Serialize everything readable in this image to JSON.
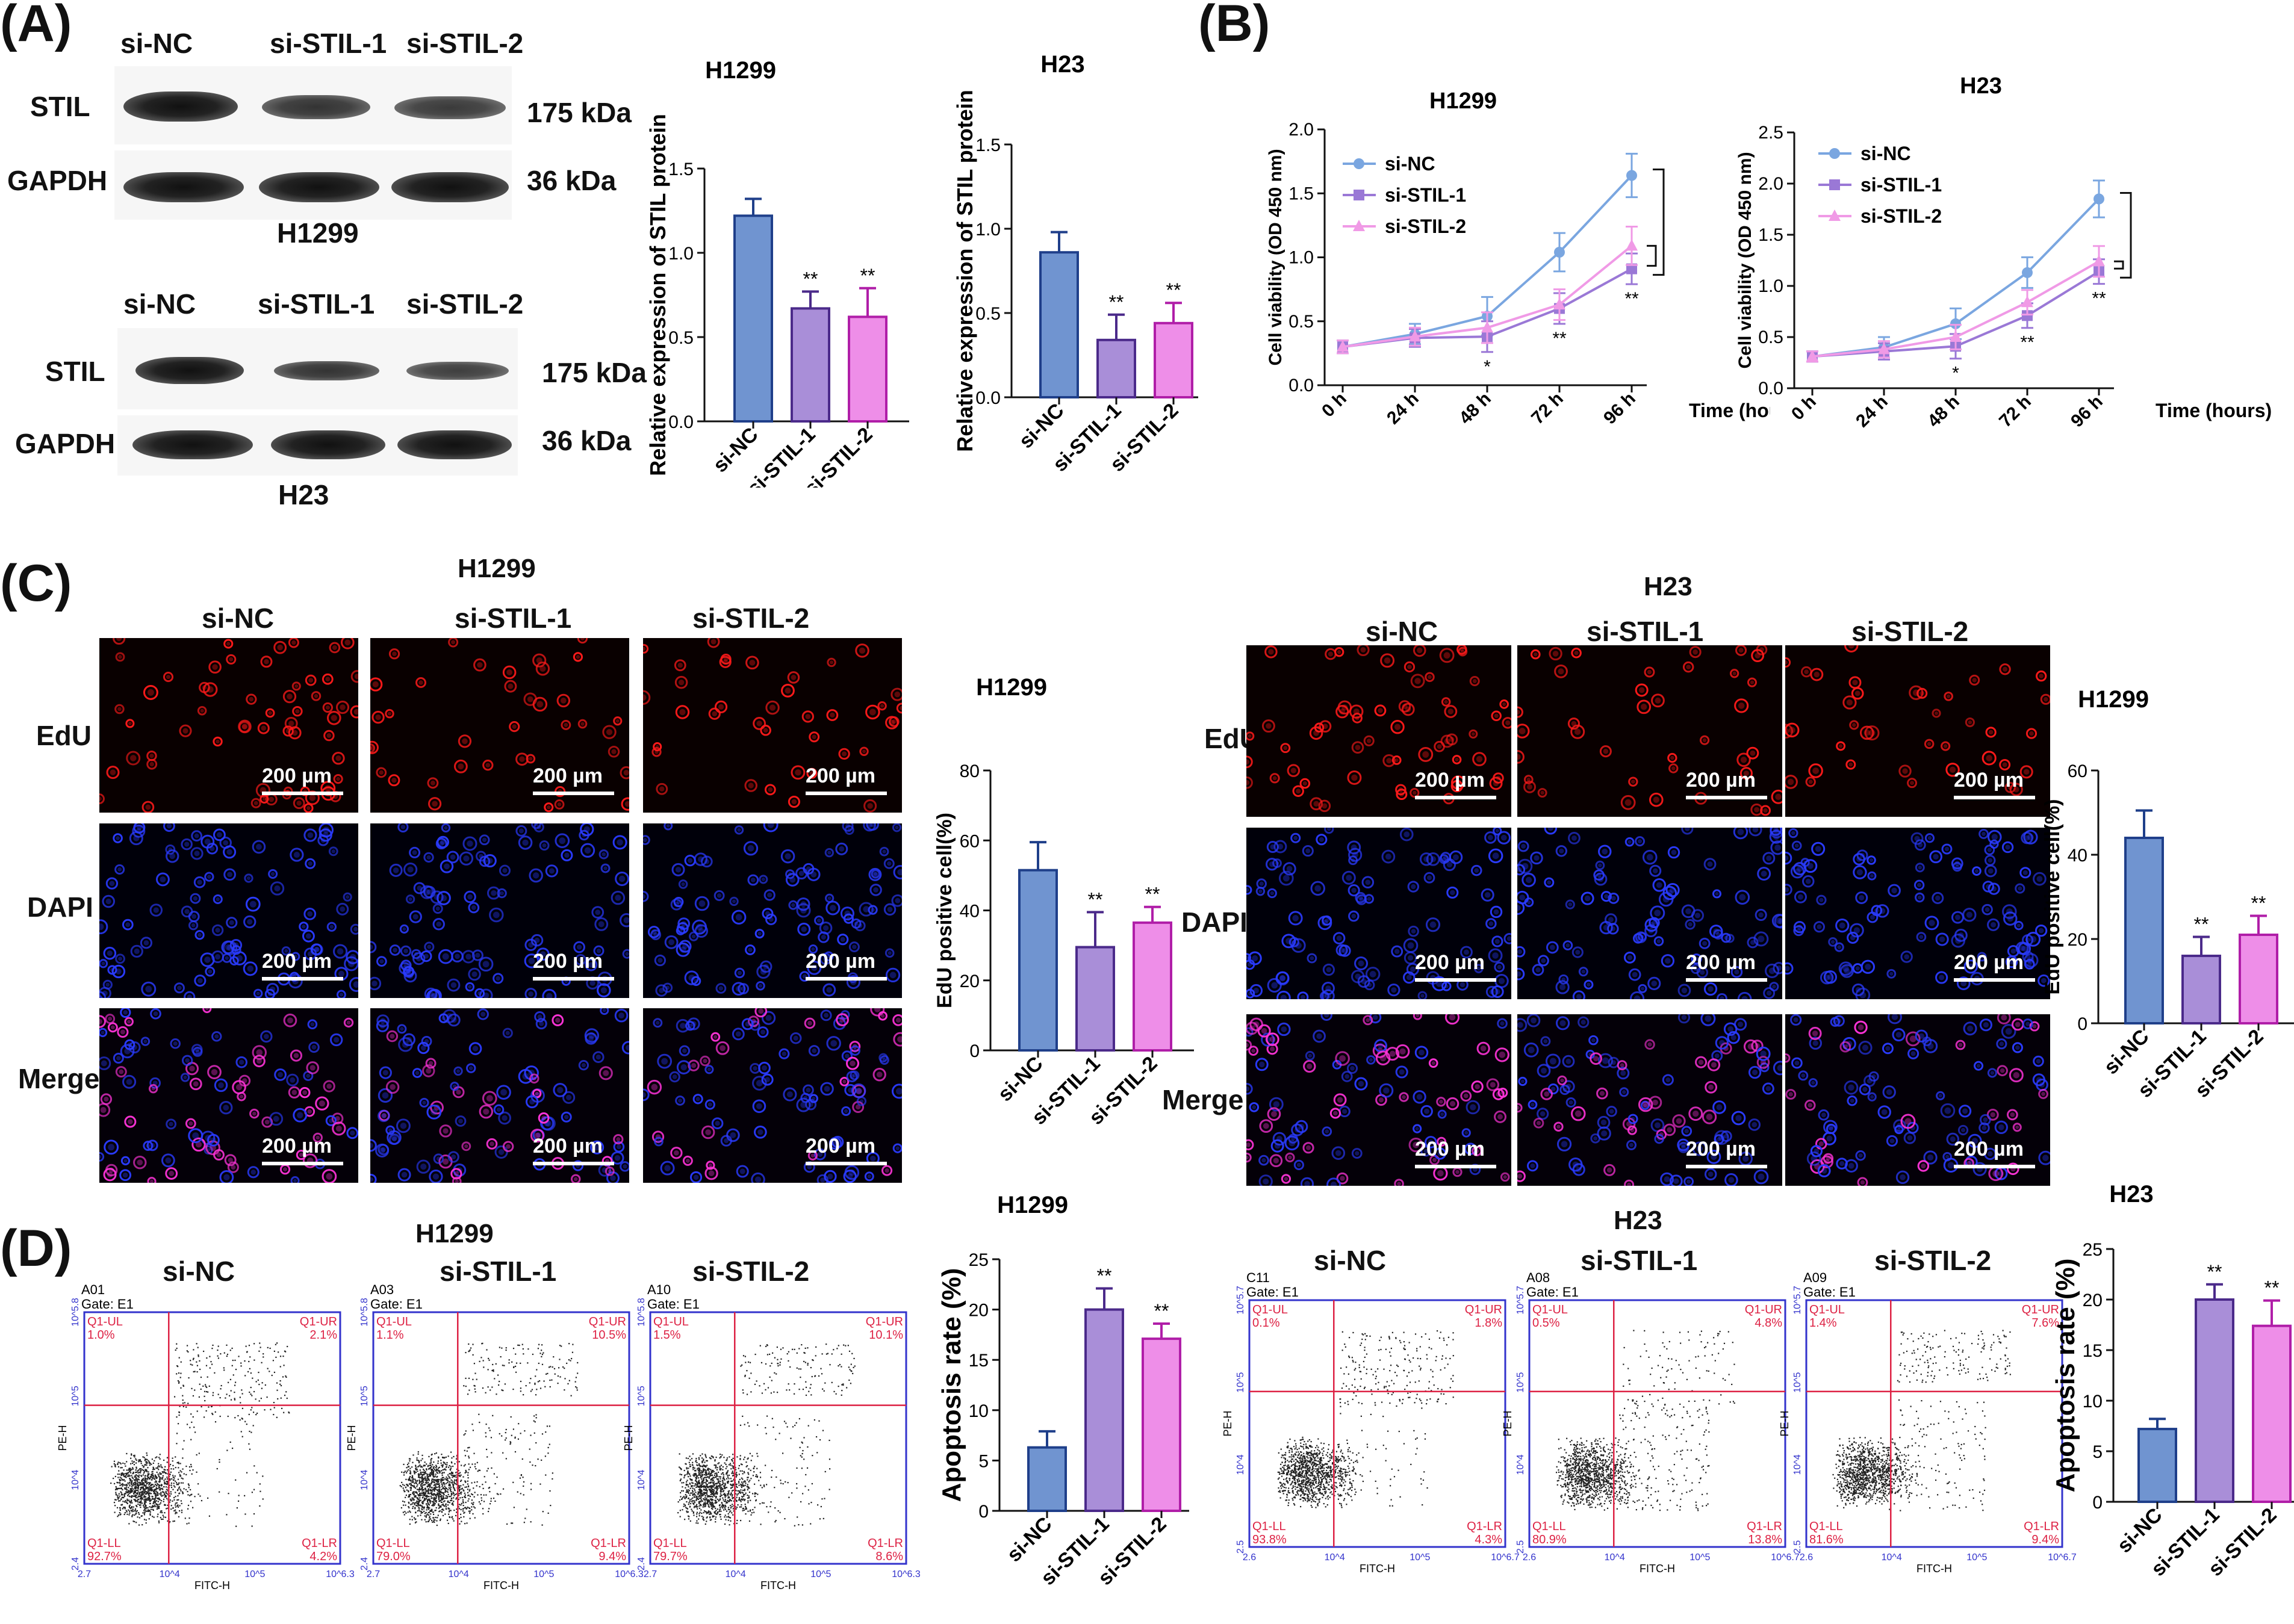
{
  "panels": {
    "A": "(A)",
    "B": "(B)",
    "C": "(C)",
    "D": "(D)"
  },
  "westernH1299": {
    "lanes": [
      "si-NC",
      "si-STIL-1",
      "si-STIL-2"
    ],
    "rows": [
      "STIL",
      "GAPDH"
    ],
    "sizes": [
      "175 kDa",
      "36 kDa"
    ],
    "cell": "H1299"
  },
  "westernH23": {
    "lanes": [
      "si-NC",
      "si-STIL-1",
      "si-STIL-2"
    ],
    "rows": [
      "STIL",
      "GAPDH"
    ],
    "sizes": [
      "175 kDa",
      "36 kDa"
    ],
    "cell": "H23"
  },
  "cViewTitles": {
    "h1299": "H1299",
    "h23": "H23"
  },
  "cGroups": [
    "si-NC",
    "si-STIL-1",
    "si-STIL-2"
  ],
  "cRows": [
    "EdU",
    "DAPI",
    "Merge"
  ],
  "scale": "200 µm",
  "dTitles": {
    "h1299": "H1299",
    "h23": "H23"
  },
  "flowH1299": [
    {
      "group": "si-NC",
      "id": "A01",
      "gate": "Gate: E1",
      "ul": "Q1-UL",
      "ulv": "1.0%",
      "ur": "Q1-UR",
      "urv": "2.1%",
      "ll": "Q1-LL",
      "llv": "92.7%",
      "lr": "Q1-LR",
      "lrv": "4.2%",
      "yaxis": "PE-H",
      "xaxis": "FITC-H",
      "xt": [
        "2.7",
        "10^4",
        "10^5",
        "10^6.3"
      ],
      "yt": [
        "2.4",
        "10^4",
        "10^5",
        "10^5.8"
      ]
    },
    {
      "group": "si-STIL-1",
      "id": "A03",
      "gate": "Gate: E1",
      "ul": "Q1-UL",
      "ulv": "1.1%",
      "ur": "Q1-UR",
      "urv": "10.5%",
      "ll": "Q1-LL",
      "llv": "79.0%",
      "lr": "Q1-LR",
      "lrv": "9.4%",
      "yaxis": "PE-H",
      "xaxis": "FITC-H",
      "xt": [
        "2.7",
        "10^4",
        "10^5",
        "10^6.3"
      ],
      "yt": [
        "2.4",
        "10^4",
        "10^5",
        "10^5.8"
      ]
    },
    {
      "group": "si-STIL-2",
      "id": "A10",
      "gate": "Gate: E1",
      "ul": "Q1-UL",
      "ulv": "1.5%",
      "ur": "Q1-UR",
      "urv": "10.1%",
      "ll": "Q1-LL",
      "llv": "79.7%",
      "lr": "Q1-LR",
      "lrv": "8.6%",
      "yaxis": "PE-H",
      "xaxis": "FITC-H",
      "xt": [
        "2.7",
        "10^4",
        "10^5",
        "10^6.3"
      ],
      "yt": [
        "2.4",
        "10^4",
        "10^5",
        "10^5.8"
      ]
    }
  ],
  "flowH23": [
    {
      "group": "si-NC",
      "id": "C11",
      "gate": "Gate: E1",
      "ul": "Q1-UL",
      "ulv": "0.1%",
      "ur": "Q1-UR",
      "urv": "1.8%",
      "ll": "Q1-LL",
      "llv": "93.8%",
      "lr": "Q1-LR",
      "lrv": "4.3%",
      "yaxis": "PE-H",
      "xaxis": "FITC-H",
      "xt": [
        "2.6",
        "10^4",
        "10^5",
        "10^6.7"
      ],
      "yt": [
        "2.5",
        "10^4",
        "10^5",
        "10^5.7"
      ]
    },
    {
      "group": "si-STIL-1",
      "id": "A08",
      "gate": "Gate: E1",
      "ul": "Q1-UL",
      "ulv": "0.5%",
      "ur": "Q1-UR",
      "urv": "4.8%",
      "ll": "Q1-LL",
      "llv": "80.9%",
      "lr": "Q1-LR",
      "lrv": "13.8%",
      "yaxis": "PE-H",
      "xaxis": "FITC-H",
      "xt": [
        "2.6",
        "10^4",
        "10^5",
        "10^6.7"
      ],
      "yt": [
        "2.5",
        "10^4",
        "10^5",
        "10^5.7"
      ]
    },
    {
      "group": "si-STIL-2",
      "id": "A09",
      "gate": "Gate: E1",
      "ul": "Q1-UL",
      "ulv": "1.4%",
      "ur": "Q1-UR",
      "urv": "7.6%",
      "ll": "Q1-LL",
      "llv": "81.6%",
      "lr": "Q1-LR",
      "lrv": "9.4%",
      "yaxis": "PE-H",
      "xaxis": "FITC-H",
      "xt": [
        "2.6",
        "10^4",
        "10^5",
        "10^6.7"
      ],
      "yt": [
        "2.5",
        "10^4",
        "10^5",
        "10^5.7"
      ]
    }
  ],
  "colors": {
    "siNC": "#7094d0",
    "siSTIL1": "#a98ed8",
    "siSTIL2": "#ee8ee8",
    "nc_edge": "#1f3f8a",
    "s1_edge": "#4b2a8a",
    "s2_edge": "#b01ea8",
    "line_nc": "#7aa6e0",
    "line_s1": "#9a78d6",
    "line_s2": "#f09ae6"
  },
  "chart_data": [
    {
      "id": "barA1",
      "type": "bar",
      "title": "H1299",
      "ylabel": "Relative expression of STIL protein",
      "categories": [
        "si-NC",
        "si-STIL-1",
        "si-STIL-2"
      ],
      "values": [
        1.22,
        0.67,
        0.62
      ],
      "errors": [
        0.1,
        0.1,
        0.17
      ],
      "sig": [
        "",
        "**",
        "**"
      ],
      "ylim": [
        0,
        1.5
      ],
      "ticks": [
        "0.0",
        "0.5",
        "1.0",
        "1.5"
      ]
    },
    {
      "id": "barA2",
      "type": "bar",
      "title": "H23",
      "ylabel": "Relative expression of STIL protein",
      "categories": [
        "si-NC",
        "si-STIL-1",
        "si-STIL-2"
      ],
      "values": [
        0.86,
        0.34,
        0.44
      ],
      "errors": [
        0.12,
        0.15,
        0.12
      ],
      "sig": [
        "",
        "**",
        "**"
      ],
      "ylim": [
        0,
        1.5
      ],
      "ticks": [
        "0.0",
        "0.5",
        "1.0",
        "1.5"
      ]
    },
    {
      "id": "lineB1",
      "type": "line",
      "title": "H1299",
      "ylabel": "Cell viability (OD 450 nm)",
      "xlabel": "Time (hours)",
      "x": [
        "0 h",
        "24 h",
        "48 h",
        "72 h",
        "96 h"
      ],
      "series": [
        {
          "name": "si-NC",
          "values": [
            0.3,
            0.4,
            0.54,
            1.04,
            1.64
          ],
          "errors": [
            0.05,
            0.08,
            0.15,
            0.15,
            0.17
          ]
        },
        {
          "name": "si-STIL-1",
          "values": [
            0.3,
            0.37,
            0.38,
            0.6,
            0.91
          ],
          "errors": [
            0.05,
            0.07,
            0.12,
            0.12,
            0.12
          ]
        },
        {
          "name": "si-STIL-2",
          "values": [
            0.3,
            0.38,
            0.45,
            0.63,
            1.09
          ],
          "errors": [
            0.05,
            0.07,
            0.12,
            0.12,
            0.15
          ]
        }
      ],
      "sig": [
        "",
        "",
        "*",
        "**",
        "**"
      ],
      "ylim": [
        0,
        2.0
      ],
      "ticks": [
        "0.0",
        "0.5",
        "1.0",
        "1.5",
        "2.0"
      ]
    },
    {
      "id": "lineB2",
      "type": "line",
      "title": "H23",
      "ylabel": "Cell viability (OD 450 nm)",
      "xlabel": "Time (hours)",
      "x": [
        "0 h",
        "24 h",
        "48 h",
        "72 h",
        "96 h"
      ],
      "series": [
        {
          "name": "si-NC",
          "values": [
            0.31,
            0.4,
            0.63,
            1.13,
            1.85
          ],
          "errors": [
            0.05,
            0.1,
            0.15,
            0.15,
            0.18
          ]
        },
        {
          "name": "si-STIL-1",
          "values": [
            0.31,
            0.36,
            0.41,
            0.71,
            1.14
          ],
          "errors": [
            0.05,
            0.08,
            0.12,
            0.12,
            0.12
          ]
        },
        {
          "name": "si-STIL-2",
          "values": [
            0.31,
            0.38,
            0.5,
            0.84,
            1.24
          ],
          "errors": [
            0.05,
            0.08,
            0.12,
            0.12,
            0.15
          ]
        }
      ],
      "sig": [
        "",
        "",
        "*",
        "**",
        "**"
      ],
      "ylim": [
        0,
        2.5
      ],
      "ticks": [
        "0.0",
        "0.5",
        "1.0",
        "1.5",
        "2.0",
        "2.5"
      ]
    },
    {
      "id": "barC1",
      "type": "bar",
      "title": "H1299",
      "ylabel": "EdU positive cell(%)",
      "categories": [
        "si-NC",
        "si-STIL-1",
        "si-STIL-2"
      ],
      "values": [
        51.5,
        29.5,
        36.5
      ],
      "errors": [
        8,
        10,
        4.5
      ],
      "sig": [
        "",
        "**",
        "**"
      ],
      "ylim": [
        0,
        80
      ],
      "ticks": [
        "0",
        "20",
        "40",
        "60",
        "80"
      ]
    },
    {
      "id": "barC2",
      "type": "bar",
      "title": "H1299",
      "ylabel": "EdU positive cell(%)",
      "categories": [
        "si-NC",
        "si-STIL-1",
        "si-STIL-2"
      ],
      "values": [
        44,
        16,
        21
      ],
      "errors": [
        6.5,
        4.5,
        4.5
      ],
      "sig": [
        "",
        "**",
        "**"
      ],
      "ylim": [
        0,
        60
      ],
      "ticks": [
        "0",
        "20",
        "40",
        "60"
      ]
    },
    {
      "id": "barD1",
      "type": "bar",
      "title": "H1299",
      "ylabel": "Apoptosis rate (%)",
      "categories": [
        "si-NC",
        "si-STIL-1",
        "si-STIL-2"
      ],
      "values": [
        6.3,
        20.0,
        17.1
      ],
      "errors": [
        1.6,
        2.1,
        1.5
      ],
      "sig": [
        "",
        "**",
        "**"
      ],
      "ylim": [
        0,
        25
      ],
      "ticks": [
        "0",
        "5",
        "10",
        "15",
        "20",
        "25"
      ]
    },
    {
      "id": "barD2",
      "type": "bar",
      "title": "H23",
      "ylabel": "Apoptosis rate (%)",
      "categories": [
        "si-NC",
        "si-STIL-1",
        "si-STIL-2"
      ],
      "values": [
        7.2,
        20.0,
        17.4
      ],
      "errors": [
        1.0,
        1.5,
        2.5
      ],
      "sig": [
        "",
        "**",
        "**"
      ],
      "ylim": [
        0,
        25
      ],
      "ticks": [
        "0",
        "5",
        "10",
        "15",
        "20",
        "25"
      ]
    }
  ]
}
